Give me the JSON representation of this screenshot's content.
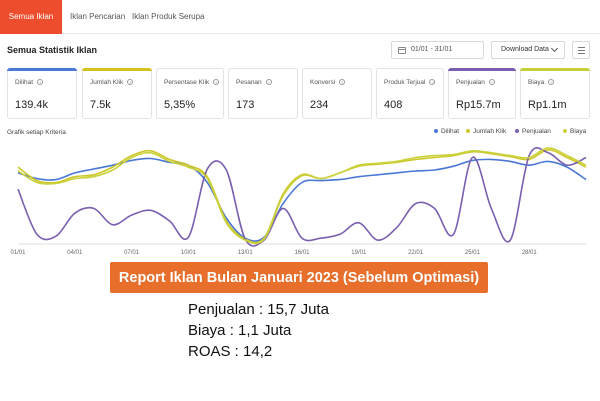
{
  "tabs": [
    {
      "label": "Semua Iklan",
      "active": true
    },
    {
      "label": "Iklan Pencarian",
      "active": false
    },
    {
      "label": "Iklan Produk Serupa",
      "active": false
    }
  ],
  "header": {
    "title": "Semua Statistik Iklan",
    "date_range": "01/01 - 31/01",
    "download_label": "Download Data"
  },
  "metrics": [
    {
      "label": "Dilihat",
      "value": "139.4k",
      "accent": "#4a78d6"
    },
    {
      "label": "Jumlah Klik",
      "value": "7.5k",
      "accent": "#d4c21f"
    },
    {
      "label": "Persentase Klik",
      "value": "5,35%",
      "accent": ""
    },
    {
      "label": "Pesanan",
      "value": "173",
      "accent": ""
    },
    {
      "label": "Konversi",
      "value": "234",
      "accent": ""
    },
    {
      "label": "Produk Terjual",
      "value": "408",
      "accent": ""
    },
    {
      "label": "Penjualan",
      "value": "Rp15.7m",
      "accent": "#7a5fb0"
    },
    {
      "label": "Biaya",
      "value": "Rp1.1m",
      "accent": "#c5cf3a"
    }
  ],
  "chart_title": "Grafik setiap Kriteria",
  "chart_data": {
    "type": "line",
    "x": [
      "01/01",
      "02/01",
      "03/01",
      "04/01",
      "05/01",
      "06/01",
      "07/01",
      "08/01",
      "09/01",
      "10/01",
      "11/01",
      "12/01",
      "13/01",
      "14/01",
      "15/01",
      "16/01",
      "17/01",
      "18/01",
      "19/01",
      "20/01",
      "21/01",
      "22/01",
      "23/01",
      "24/01",
      "25/01",
      "26/01",
      "27/01",
      "28/01",
      "29/01",
      "30/01",
      "31/01"
    ],
    "xticks": [
      "01/01",
      "04/01",
      "07/01",
      "10/01",
      "13/01",
      "16/01",
      "19/01",
      "22/01",
      "25/01",
      "28/01"
    ],
    "ylim": [
      0,
      100
    ],
    "grid": false,
    "legend_position": "top-right",
    "series": [
      {
        "name": "Dilihat",
        "color": "#4a78d6",
        "values": [
          72,
          66,
          65,
          72,
          76,
          80,
          85,
          87,
          83,
          80,
          62,
          25,
          4,
          5,
          40,
          62,
          64,
          65,
          68,
          70,
          72,
          74,
          75,
          79,
          85,
          86,
          84,
          80,
          84,
          78,
          65
        ]
      },
      {
        "name": "Jumlah Klik",
        "color": "#cfc72a",
        "values": [
          78,
          64,
          62,
          68,
          70,
          78,
          90,
          95,
          86,
          80,
          68,
          22,
          3,
          4,
          50,
          70,
          66,
          72,
          79,
          81,
          83,
          86,
          88,
          90,
          94,
          92,
          89,
          86,
          96,
          88,
          78
        ]
      },
      {
        "name": "Penjualan",
        "color": "#7a5fb0",
        "values": [
          55,
          8,
          6,
          30,
          35,
          18,
          28,
          33,
          22,
          5,
          76,
          75,
          3,
          2,
          35,
          4,
          4,
          8,
          20,
          2,
          15,
          40,
          35,
          8,
          88,
          35,
          2,
          90,
          93,
          80,
          88
        ]
      },
      {
        "name": "Biaya",
        "color": "#c9d23a",
        "values": [
          74,
          62,
          61,
          66,
          68,
          75,
          88,
          93,
          84,
          78,
          66,
          20,
          2,
          3,
          48,
          69,
          66,
          72,
          80,
          82,
          84,
          88,
          90,
          91,
          95,
          93,
          90,
          88,
          98,
          90,
          80
        ]
      }
    ]
  },
  "banner": "Report Iklan Bulan Januari 2023  (Sebelum Optimasi)",
  "summary": [
    "Penjualan : 15,7 Juta",
    "Biaya : 1,1 Juta",
    "ROAS : 14,2"
  ]
}
